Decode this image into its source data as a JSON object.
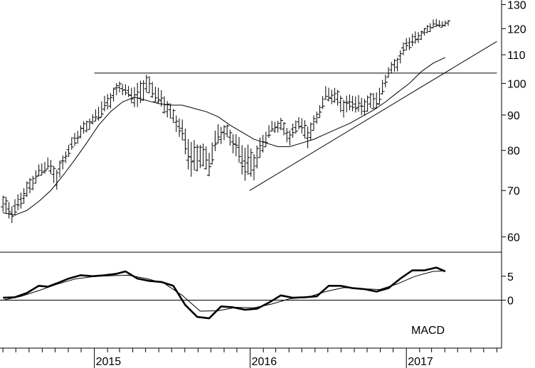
{
  "chart_data": [
    {
      "type": "bar",
      "subtype": "ohlc-weekly",
      "title": "",
      "scale": "log",
      "ylim": [
        57,
        132
      ],
      "y_ticks": [
        60,
        70,
        80,
        90,
        100,
        110,
        120,
        130
      ],
      "x_tick_labels": [
        "2015",
        "2016",
        "2017"
      ],
      "price_series": {
        "name": "",
        "points": [
          [
            "2014-06-01",
            64,
            70
          ],
          [
            "2014-06-22",
            62,
            68
          ],
          [
            "2014-07-13",
            65,
            71
          ],
          [
            "2014-08-03",
            68,
            74
          ],
          [
            "2014-08-24",
            72,
            77
          ],
          [
            "2014-09-14",
            74,
            79
          ],
          [
            "2014-10-05",
            69,
            77
          ],
          [
            "2014-10-26",
            76,
            81
          ],
          [
            "2014-11-16",
            80,
            86
          ],
          [
            "2014-12-07",
            83,
            89
          ],
          [
            "2014-12-28",
            86,
            91
          ],
          [
            "2015-01-18",
            88,
            96
          ],
          [
            "2015-02-08",
            91,
            99
          ],
          [
            "2015-03-01",
            96,
            102
          ],
          [
            "2015-03-22",
            94,
            100
          ],
          [
            "2015-04-12",
            89,
            102
          ],
          [
            "2015-05-03",
            95,
            105
          ],
          [
            "2015-05-24",
            93,
            101
          ],
          [
            "2015-06-14",
            89,
            98
          ],
          [
            "2015-07-05",
            86,
            93
          ],
          [
            "2015-07-26",
            80,
            90
          ],
          [
            "2015-08-16",
            70,
            85
          ],
          [
            "2015-09-06",
            74,
            84
          ],
          [
            "2015-09-27",
            72,
            82
          ],
          [
            "2015-10-18",
            80,
            89
          ],
          [
            "2015-11-08",
            82,
            88
          ],
          [
            "2015-11-29",
            76,
            86
          ],
          [
            "2015-12-20",
            70,
            84
          ],
          [
            "2016-01-10",
            71,
            82
          ],
          [
            "2016-01-31",
            78,
            86
          ],
          [
            "2016-02-21",
            84,
            89
          ],
          [
            "2016-03-13",
            84,
            90
          ],
          [
            "2016-04-03",
            80,
            87
          ],
          [
            "2016-04-24",
            85,
            91
          ],
          [
            "2016-05-15",
            79,
            89
          ],
          [
            "2016-06-05",
            86,
            92
          ],
          [
            "2016-06-26",
            93,
            100
          ],
          [
            "2016-07-17",
            92,
            100
          ],
          [
            "2016-08-07",
            88,
            97
          ],
          [
            "2016-08-28",
            90,
            98
          ],
          [
            "2016-09-18",
            88,
            97
          ],
          [
            "2016-10-09",
            90,
            98
          ],
          [
            "2016-10-30",
            91,
            100
          ],
          [
            "2016-11-20",
            101,
            107
          ],
          [
            "2016-12-11",
            103,
            111
          ],
          [
            "2017-01-01",
            110,
            118
          ],
          [
            "2017-01-22",
            112,
            120
          ],
          [
            "2017-02-12",
            116,
            121
          ],
          [
            "2017-03-05",
            119,
            125
          ],
          [
            "2017-03-26",
            120,
            124
          ]
        ]
      },
      "moving_average": {
        "name": "",
        "points": [
          [
            "2014-06-01",
            65
          ],
          [
            "2014-06-29",
            64.5
          ],
          [
            "2014-07-27",
            65.5
          ],
          [
            "2014-08-24",
            67.5
          ],
          [
            "2014-09-21",
            70
          ],
          [
            "2014-10-19",
            73.5
          ],
          [
            "2014-11-16",
            77.5
          ],
          [
            "2014-12-14",
            82
          ],
          [
            "2015-01-11",
            87
          ],
          [
            "2015-02-08",
            91
          ],
          [
            "2015-03-08",
            94
          ],
          [
            "2015-04-05",
            95.5
          ],
          [
            "2015-05-03",
            94.5
          ],
          [
            "2015-05-31",
            93.5
          ],
          [
            "2015-06-28",
            93
          ],
          [
            "2015-07-26",
            93
          ],
          [
            "2015-08-23",
            92
          ],
          [
            "2015-09-20",
            91
          ],
          [
            "2015-10-18",
            89.5
          ],
          [
            "2015-11-15",
            87
          ],
          [
            "2015-12-13",
            85
          ],
          [
            "2016-01-10",
            83
          ],
          [
            "2016-02-07",
            82
          ],
          [
            "2016-03-06",
            81
          ],
          [
            "2016-04-03",
            81
          ],
          [
            "2016-05-01",
            82
          ],
          [
            "2016-05-29",
            83
          ],
          [
            "2016-06-26",
            84.5
          ],
          [
            "2016-07-24",
            86
          ],
          [
            "2016-08-21",
            87.5
          ],
          [
            "2016-09-18",
            89.5
          ],
          [
            "2016-10-16",
            91.5
          ],
          [
            "2016-11-13",
            94
          ],
          [
            "2016-12-11",
            97
          ],
          [
            "2017-01-08",
            100
          ],
          [
            "2017-02-05",
            104
          ],
          [
            "2017-03-05",
            107
          ],
          [
            "2017-04-02",
            109
          ]
        ]
      },
      "reference_lines": [
        {
          "kind": "horizontal",
          "value": 103.5,
          "from": "2015-01-01",
          "to": "2017-08-01"
        },
        {
          "kind": "trendline",
          "from": [
            "2015-12-31",
            70
          ],
          "to": [
            "2017-08-01",
            115
          ]
        }
      ]
    },
    {
      "type": "line",
      "label": "MACD",
      "ylim": [
        -10,
        10
      ],
      "y_ticks": [
        0,
        5
      ],
      "zero_line": true,
      "series": [
        {
          "name": "",
          "style": "thick",
          "points": [
            [
              "2014-06-01",
              0.5
            ],
            [
              "2014-06-29",
              0.6
            ],
            [
              "2014-07-27",
              1.5
            ],
            [
              "2014-08-24",
              3
            ],
            [
              "2014-09-14",
              2.8
            ],
            [
              "2014-10-05",
              3.5
            ],
            [
              "2014-11-02",
              4.5
            ],
            [
              "2014-11-30",
              5.2
            ],
            [
              "2014-12-28",
              5
            ],
            [
              "2015-01-25",
              5.2
            ],
            [
              "2015-02-22",
              5.5
            ],
            [
              "2015-03-15",
              6
            ],
            [
              "2015-04-12",
              4.5
            ],
            [
              "2015-05-10",
              4
            ],
            [
              "2015-06-07",
              3.8
            ],
            [
              "2015-07-05",
              3
            ],
            [
              "2015-08-02",
              -1
            ],
            [
              "2015-08-30",
              -3.5
            ],
            [
              "2015-09-27",
              -3.8
            ],
            [
              "2015-10-25",
              -1.3
            ],
            [
              "2015-11-22",
              -1.5
            ],
            [
              "2015-12-20",
              -2
            ],
            [
              "2016-01-17",
              -1.8
            ],
            [
              "2016-02-14",
              -0.5
            ],
            [
              "2016-03-13",
              1
            ],
            [
              "2016-04-10",
              0.5
            ],
            [
              "2016-05-08",
              0.6
            ],
            [
              "2016-06-05",
              0.8
            ],
            [
              "2016-07-03",
              3
            ],
            [
              "2016-07-31",
              3
            ],
            [
              "2016-08-28",
              2.5
            ],
            [
              "2016-09-25",
              2.3
            ],
            [
              "2016-10-23",
              1.8
            ],
            [
              "2016-11-20",
              2.5
            ],
            [
              "2016-12-18",
              4.5
            ],
            [
              "2017-01-15",
              6.2
            ],
            [
              "2017-02-12",
              6.2
            ],
            [
              "2017-03-12",
              6.8
            ],
            [
              "2017-04-02",
              6
            ]
          ]
        },
        {
          "name": "",
          "style": "thin",
          "points": [
            [
              "2014-06-01",
              0
            ],
            [
              "2014-07-13",
              0.8
            ],
            [
              "2014-08-24",
              2
            ],
            [
              "2014-10-05",
              3.3
            ],
            [
              "2014-11-16",
              4.4
            ],
            [
              "2014-12-28",
              4.9
            ],
            [
              "2015-02-08",
              5.1
            ],
            [
              "2015-03-22",
              5.2
            ],
            [
              "2015-05-03",
              4.5
            ],
            [
              "2015-06-14",
              3.5
            ],
            [
              "2015-07-26",
              1
            ],
            [
              "2015-09-06",
              -2.3
            ],
            [
              "2015-10-18",
              -2.2
            ],
            [
              "2015-11-29",
              -1.5
            ],
            [
              "2016-01-10",
              -1.6
            ],
            [
              "2016-02-21",
              -0.8
            ],
            [
              "2016-04-03",
              0.3
            ],
            [
              "2016-05-15",
              0.6
            ],
            [
              "2016-06-26",
              1.8
            ],
            [
              "2016-08-07",
              2.6
            ],
            [
              "2016-09-18",
              2.4
            ],
            [
              "2016-10-30",
              2.2
            ],
            [
              "2016-12-11",
              3.4
            ],
            [
              "2017-01-22",
              5
            ],
            [
              "2017-03-05",
              6
            ],
            [
              "2017-04-02",
              6.1
            ]
          ]
        }
      ]
    }
  ]
}
